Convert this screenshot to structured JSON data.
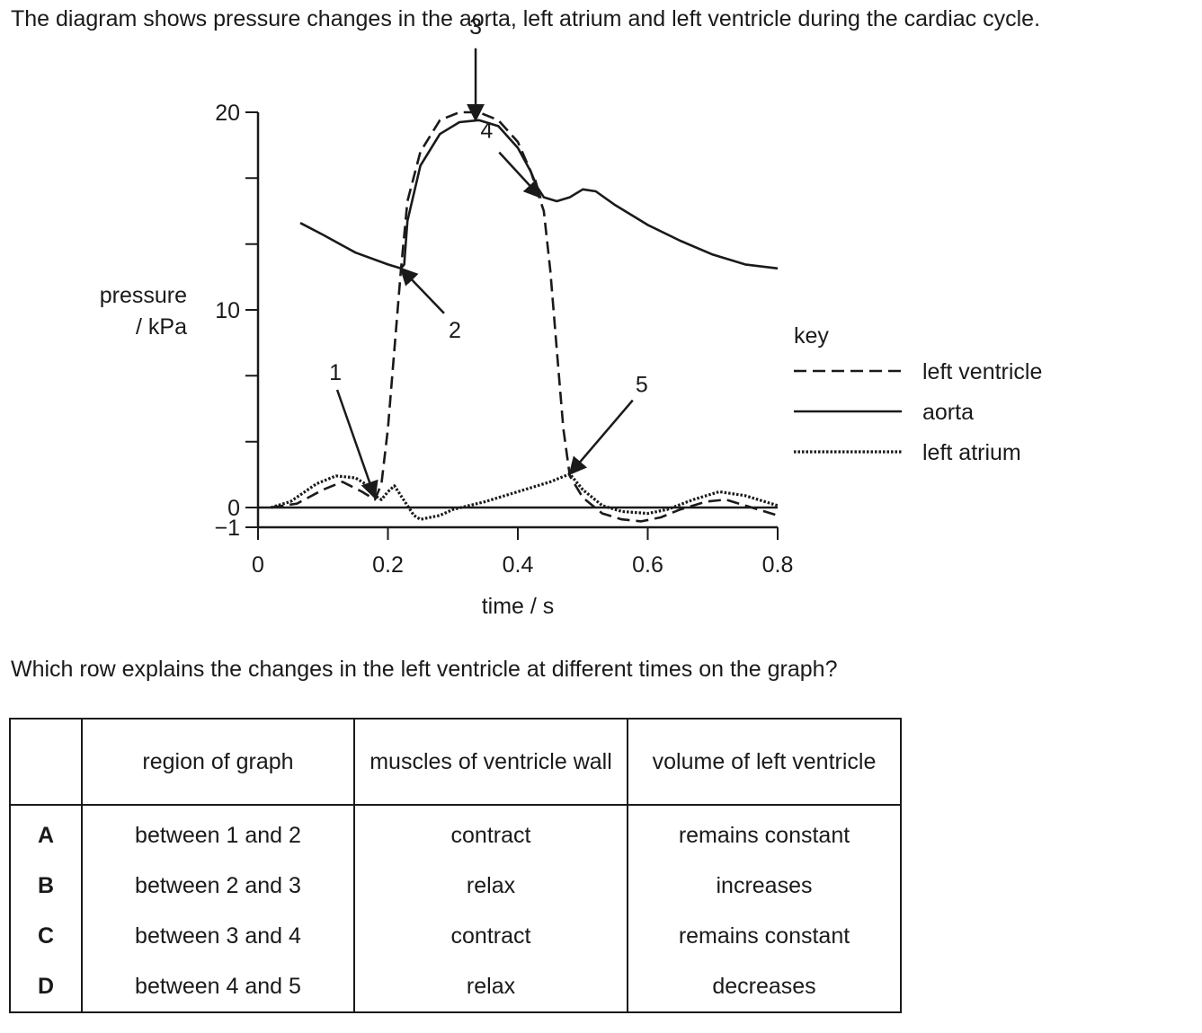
{
  "intro": "The diagram shows pressure changes in the aorta, left atrium and left ventricle during the cardiac cycle.",
  "question": "Which row explains the changes in the left ventricle at different times on the graph?",
  "chart_data": {
    "type": "line",
    "xlabel": "time / s",
    "ylabel": [
      "pressure",
      "/ kPa"
    ],
    "x_ticks": [
      "0",
      "0.2",
      "0.4",
      "0.6",
      "0.8"
    ],
    "y_ticks": [
      "20",
      "10",
      "0",
      "−1"
    ],
    "xlim": [
      0,
      0.8
    ],
    "ylim": [
      -1,
      20
    ],
    "legend_title": "key",
    "legend_position": "right",
    "series": [
      {
        "name": "left ventricle",
        "style": "dashed",
        "x": [
          0.02,
          0.06,
          0.1,
          0.13,
          0.16,
          0.18,
          0.19,
          0.2,
          0.21,
          0.22,
          0.23,
          0.25,
          0.28,
          0.31,
          0.34,
          0.37,
          0.4,
          0.42,
          0.44,
          0.45,
          0.46,
          0.47,
          0.48,
          0.5,
          0.53,
          0.56,
          0.59,
          0.62,
          0.65,
          0.69,
          0.72,
          0.75,
          0.8
        ],
        "y": [
          0,
          0.2,
          0.9,
          1.3,
          0.8,
          0.4,
          1.2,
          4,
          8,
          12,
          15.5,
          18,
          19.6,
          20,
          20,
          19.6,
          18.5,
          17,
          15,
          12,
          8,
          4,
          1.6,
          0.5,
          -0.3,
          -0.6,
          -0.7,
          -0.5,
          -0.1,
          0.3,
          0.4,
          0.1,
          -0.4
        ]
      },
      {
        "name": "aorta",
        "style": "solid",
        "x": [
          0.065,
          0.1,
          0.15,
          0.2,
          0.22,
          0.225,
          0.23,
          0.25,
          0.28,
          0.31,
          0.34,
          0.37,
          0.4,
          0.42,
          0.43,
          0.44,
          0.46,
          0.48,
          0.5,
          0.52,
          0.55,
          0.6,
          0.65,
          0.7,
          0.75,
          0.8
        ],
        "y": [
          14.4,
          13.8,
          12.9,
          12.3,
          12.1,
          12.3,
          14.5,
          17.3,
          18.9,
          19.5,
          19.6,
          19.3,
          18.2,
          17,
          16.2,
          15.7,
          15.5,
          15.7,
          16.1,
          16,
          15.3,
          14.3,
          13.5,
          12.8,
          12.3,
          12.1
        ]
      },
      {
        "name": "left atrium",
        "style": "dotted",
        "x": [
          0.02,
          0.05,
          0.09,
          0.12,
          0.15,
          0.17,
          0.18,
          0.19,
          0.2,
          0.21,
          0.22,
          0.24,
          0.25,
          0.28,
          0.3,
          0.35,
          0.4,
          0.45,
          0.48,
          0.5,
          0.53,
          0.56,
          0.6,
          0.63,
          0.67,
          0.71,
          0.75,
          0.8
        ],
        "y": [
          0,
          0.3,
          1.2,
          1.6,
          1.5,
          1.1,
          0.6,
          0.4,
          0.8,
          1.1,
          0.6,
          -0.4,
          -0.6,
          -0.4,
          -0.1,
          0.3,
          0.8,
          1.3,
          1.7,
          0.9,
          0.1,
          -0.2,
          -0.3,
          -0.1,
          0.4,
          0.8,
          0.6,
          0.1
        ]
      }
    ],
    "annotations": [
      {
        "label": "1",
        "target": [
          0.18,
          0.5
        ]
      },
      {
        "label": "2",
        "target": [
          0.22,
          12.1
        ]
      },
      {
        "label": "3",
        "target": [
          0.335,
          19.6
        ]
      },
      {
        "label": "4",
        "target": [
          0.435,
          15.7
        ]
      },
      {
        "label": "5",
        "target": [
          0.48,
          1.7
        ]
      }
    ]
  },
  "table": {
    "headers": [
      "",
      "region of graph",
      "muscles of ventricle wall",
      "volume of left ventricle"
    ],
    "rows": [
      {
        "letter": "A",
        "region": "between 1 and 2",
        "muscles": "contract",
        "volume": "remains constant"
      },
      {
        "letter": "B",
        "region": "between 2 and 3",
        "muscles": "relax",
        "volume": "increases"
      },
      {
        "letter": "C",
        "region": "between 3 and 4",
        "muscles": "contract",
        "volume": "remains constant"
      },
      {
        "letter": "D",
        "region": "between 4 and 5",
        "muscles": "relax",
        "volume": "decreases"
      }
    ]
  }
}
